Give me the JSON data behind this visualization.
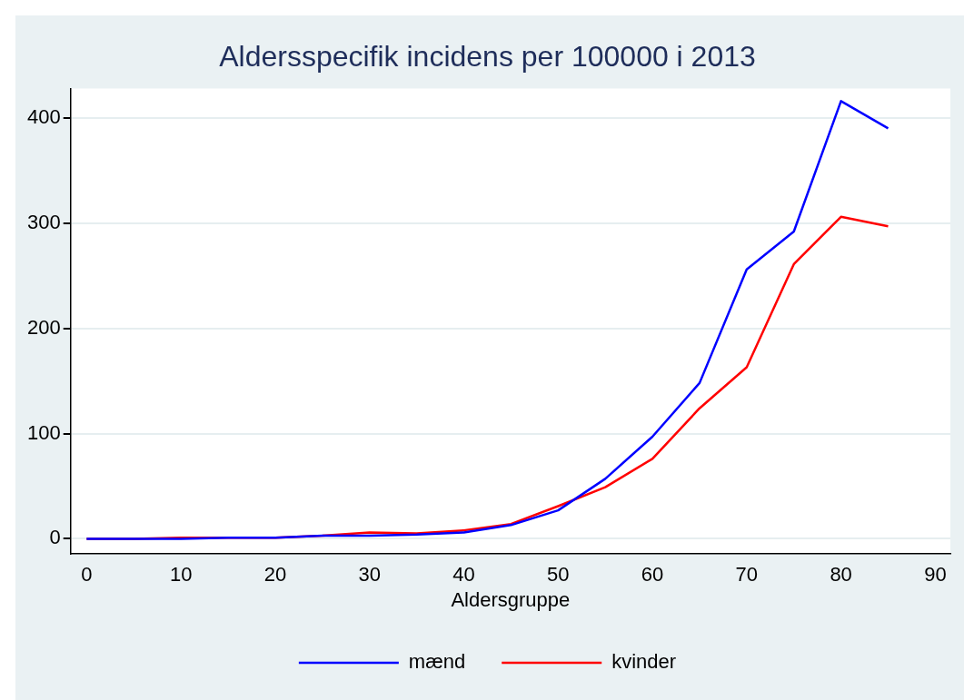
{
  "chart_data": {
    "type": "line",
    "title": "Aldersspecifik incidens per 100000 i 2013",
    "xlabel": "Aldersgruppe",
    "x": [
      0,
      5,
      10,
      15,
      20,
      25,
      30,
      35,
      40,
      45,
      50,
      55,
      60,
      65,
      70,
      75,
      80,
      85
    ],
    "series": [
      {
        "name": "mænd",
        "color": "#0000ff",
        "values": [
          0,
          0,
          0,
          1,
          1,
          3,
          3,
          4,
          6,
          13,
          27,
          57,
          97,
          148,
          256,
          292,
          416,
          390
        ]
      },
      {
        "name": "kvinder",
        "color": "#ff0000",
        "values": [
          0,
          0,
          1,
          1,
          1,
          3,
          6,
          5,
          8,
          14,
          31,
          49,
          76,
          124,
          163,
          261,
          306,
          297
        ]
      }
    ],
    "xlim": [
      -1.7,
      91.6
    ],
    "xticks": [
      0,
      10,
      20,
      30,
      40,
      50,
      60,
      70,
      80,
      90
    ],
    "ylim": [
      -14.5,
      428
    ],
    "yticks": [
      0,
      100,
      200,
      300,
      400
    ],
    "grid": "y",
    "legend": "bottom",
    "marker": "none",
    "line_style": "solid"
  }
}
